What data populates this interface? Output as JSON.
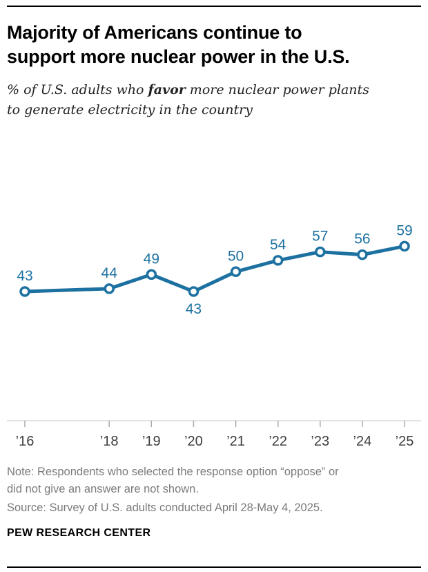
{
  "header": {
    "title_line1": "Majority of Americans continue to",
    "title_line2": "support more nuclear power in the U.S.",
    "subtitle_prefix": "% of U.S. adults who ",
    "subtitle_bold": "favor",
    "subtitle_line1_rest": " more nuclear power plants",
    "subtitle_line2": "to generate electricity in the country"
  },
  "chart_data": {
    "type": "line",
    "series_name": "Favor",
    "x": [
      2016,
      2018,
      2019,
      2020,
      2021,
      2022,
      2023,
      2024,
      2025
    ],
    "tick_labels": [
      "’16",
      "’18",
      "’19",
      "’20",
      "’21",
      "’22",
      "’23",
      "’24",
      "’25"
    ],
    "values": [
      43,
      44,
      49,
      43,
      50,
      54,
      57,
      56,
      59
    ],
    "label_below_years": [
      2020
    ],
    "xlim": [
      2016,
      2025
    ],
    "ylim": [
      0,
      100
    ],
    "grid": false,
    "legend": "none",
    "line_color": "#1d71a1",
    "marker_fill": "#ffffff",
    "axis_color": "#c9c9c9",
    "tick_color": "#a9a9a9",
    "tick_label_color": "#3d3d3d",
    "title": "",
    "xlabel": "",
    "ylabel": ""
  },
  "footer": {
    "note_line1": "Note: Respondents who selected the response option “oppose” or",
    "note_line2": "did not give an answer are not shown.",
    "source": "Source: Survey of U.S. adults conducted April 28-May 4, 2025.",
    "brand": "PEW RESEARCH CENTER"
  }
}
